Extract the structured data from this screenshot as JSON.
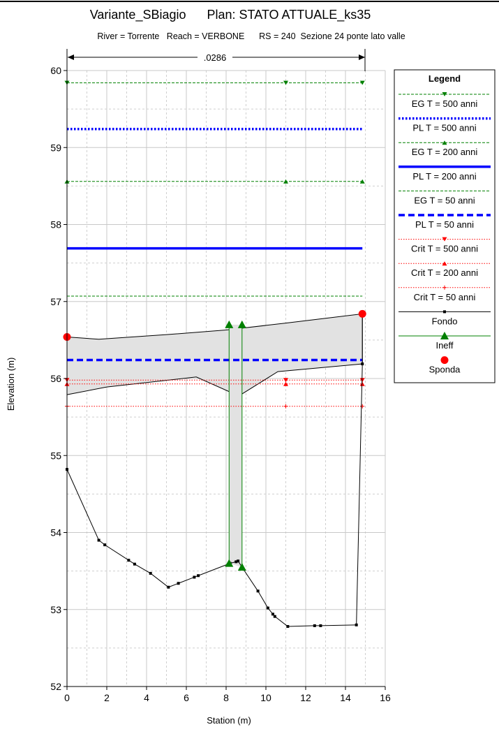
{
  "chart_data": {
    "type": "line",
    "title": "Variante_SBiagio      Plan: STATO ATTUALE_ks35",
    "subtitle": "River = Torrente   Reach = VERBONE      RS = 240  Sezione 24 ponte lato valle",
    "xlabel": "Station (m)",
    "ylabel": "Elevation (m)",
    "xlim": [
      0,
      16
    ],
    "ylim": [
      52,
      60
    ],
    "xticks": [
      0,
      2,
      4,
      6,
      8,
      10,
      12,
      14,
      16
    ],
    "yticks": [
      52,
      53,
      54,
      55,
      56,
      57,
      58,
      59,
      60
    ],
    "grid": true,
    "manning_label": ".0286",
    "manning_range": [
      0,
      14.85
    ],
    "legend": {
      "title": "Legend",
      "position": "right",
      "entries": [
        {
          "label": "EG T = 500 anni",
          "color": "#008000",
          "style": "dashed-thin",
          "marker": "triangle-down"
        },
        {
          "label": "PL T = 500 anni",
          "color": "#0000ff",
          "style": "dotted-thick",
          "marker": "none"
        },
        {
          "label": "EG T = 200 anni",
          "color": "#008000",
          "style": "dashed-thin",
          "marker": "triangle-up"
        },
        {
          "label": "PL T = 200 anni",
          "color": "#0000ff",
          "style": "solid-thick",
          "marker": "none"
        },
        {
          "label": "EG T = 50 anni",
          "color": "#008000",
          "style": "dashed-thin",
          "marker": "none"
        },
        {
          "label": "PL T = 50 anni",
          "color": "#0000ff",
          "style": "dashed-thick",
          "marker": "none"
        },
        {
          "label": "Crit T = 500 anni",
          "color": "#ff0000",
          "style": "dotted-thin",
          "marker": "triangle-down"
        },
        {
          "label": "Crit T = 200 anni",
          "color": "#ff0000",
          "style": "dotted-thin",
          "marker": "triangle-up"
        },
        {
          "label": "Crit T = 50 anni",
          "color": "#ff0000",
          "style": "dotted-thin",
          "marker": "plus"
        },
        {
          "label": "Fondo",
          "color": "#000000",
          "style": "solid-thin",
          "marker": "square"
        },
        {
          "label": "Ineff",
          "color": "#008000",
          "style": "solid-thin",
          "marker": "triangle-big"
        },
        {
          "label": "Sponda",
          "color": "#ff0000",
          "style": "none",
          "marker": "circle"
        }
      ]
    },
    "series": [
      {
        "name": "EG T = 500 anni",
        "x": [
          0,
          11,
          14.85
        ],
        "y": [
          59.84,
          59.84,
          59.84
        ]
      },
      {
        "name": "PL T = 500 anni",
        "x": [
          0,
          14.85
        ],
        "y": [
          59.24,
          59.24
        ]
      },
      {
        "name": "EG T = 200 anni",
        "x": [
          0,
          11,
          14.85
        ],
        "y": [
          58.56,
          58.56,
          58.56
        ]
      },
      {
        "name": "PL T = 200 anni",
        "x": [
          0,
          14.85
        ],
        "y": [
          57.69,
          57.69
        ]
      },
      {
        "name": "EG T = 50 anni",
        "x": [
          0,
          14.85
        ],
        "y": [
          57.07,
          57.07
        ]
      },
      {
        "name": "PL T = 50 anni",
        "x": [
          0,
          14.85
        ],
        "y": [
          56.24,
          56.24
        ]
      },
      {
        "name": "Crit T = 500 anni",
        "x": [
          0,
          11,
          14.85
        ],
        "y": [
          55.98,
          55.98,
          55.98
        ]
      },
      {
        "name": "Crit T = 200 anni",
        "x": [
          0,
          11,
          14.85
        ],
        "y": [
          55.93,
          55.93,
          55.93
        ]
      },
      {
        "name": "Crit T = 50 anni",
        "x": [
          0,
          11,
          14.85
        ],
        "y": [
          55.64,
          55.64,
          55.64
        ]
      },
      {
        "name": "Fondo",
        "x": [
          0,
          0,
          1.6,
          1.9,
          3.1,
          3.4,
          4.2,
          5.1,
          5.6,
          6.4,
          6.6,
          8.2,
          8.5,
          8.6,
          8.8,
          9.6,
          10.1,
          10.35,
          10.45,
          11.1,
          12.45,
          12.75,
          14.55,
          14.85,
          14.85
        ],
        "y": [
          56.54,
          54.82,
          53.9,
          53.84,
          53.64,
          53.59,
          53.47,
          53.29,
          53.34,
          53.42,
          53.44,
          53.6,
          53.62,
          53.63,
          53.55,
          53.24,
          53.02,
          52.94,
          52.91,
          52.78,
          52.79,
          52.79,
          52.8,
          56.19,
          56.84
        ]
      },
      {
        "name": "Ineff",
        "x": [
          8.15,
          8.8
        ],
        "y": [
          56.7,
          56.7
        ]
      },
      {
        "name": "Sponda",
        "x": [
          0,
          14.85
        ],
        "y": [
          56.54,
          56.84
        ]
      }
    ],
    "deck": {
      "top": {
        "x": [
          0,
          1.6,
          5,
          8,
          11,
          14.85
        ],
        "y": [
          56.54,
          56.51,
          56.57,
          56.63,
          56.72,
          56.84
        ]
      },
      "bottom": {
        "x": [
          0,
          2,
          6.5,
          8.15,
          8.8,
          10.6,
          14.85
        ],
        "y": [
          55.79,
          55.89,
          56.02,
          55.83,
          55.8,
          56.09,
          56.19
        ]
      }
    },
    "ineff_bottoms": {
      "x": [
        8.15,
        8.8
      ],
      "y": [
        53.6,
        53.55
      ]
    }
  }
}
